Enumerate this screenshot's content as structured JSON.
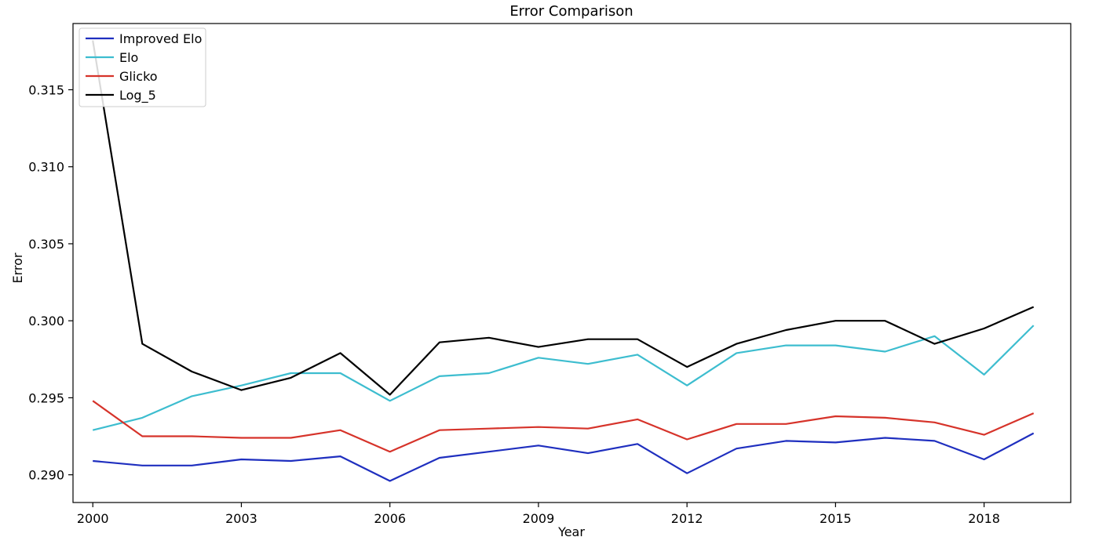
{
  "chart_data": {
    "type": "line",
    "title": "Error Comparison",
    "xlabel": "Year",
    "ylabel": "Error",
    "x": [
      2000,
      2001,
      2002,
      2003,
      2004,
      2005,
      2006,
      2007,
      2008,
      2009,
      2010,
      2011,
      2012,
      2013,
      2014,
      2015,
      2016,
      2017,
      2018,
      2019
    ],
    "xlim": [
      1999.6,
      2019.75
    ],
    "ylim": [
      0.2882,
      0.3193
    ],
    "x_ticks": [
      2000,
      2003,
      2006,
      2009,
      2012,
      2015,
      2018
    ],
    "y_ticks": [
      0.29,
      0.295,
      0.3,
      0.305,
      0.31,
      0.315
    ],
    "y_tick_labels": [
      "0.290",
      "0.295",
      "0.300",
      "0.305",
      "0.310",
      "0.315"
    ],
    "grid": false,
    "legend_position": "top-left",
    "series": [
      {
        "name": "Improved Elo",
        "color": "#1f2fbf",
        "values": [
          0.2909,
          0.2906,
          0.2906,
          0.291,
          0.2909,
          0.2912,
          0.2896,
          0.2911,
          0.2915,
          0.2919,
          0.2914,
          0.292,
          0.2901,
          0.2917,
          0.2922,
          0.2921,
          0.2924,
          0.2922,
          0.291,
          0.2927
        ]
      },
      {
        "name": "Elo",
        "color": "#3dbdcf",
        "values": [
          0.2929,
          0.2937,
          0.2951,
          0.2958,
          0.2966,
          0.2966,
          0.2948,
          0.2964,
          0.2966,
          0.2976,
          0.2972,
          0.2978,
          0.2958,
          0.2979,
          0.2984,
          0.2984,
          0.298,
          0.299,
          0.2965,
          0.2997
        ]
      },
      {
        "name": "Glicko",
        "color": "#d6332a",
        "values": [
          0.2948,
          0.2925,
          0.2925,
          0.2924,
          0.2924,
          0.2929,
          0.2915,
          0.2929,
          0.293,
          0.2931,
          0.293,
          0.2936,
          0.2923,
          0.2933,
          0.2933,
          0.2938,
          0.2937,
          0.2934,
          0.2926,
          0.294
        ]
      },
      {
        "name": "Log_5",
        "color": "#000000",
        "values": [
          0.3182,
          0.2985,
          0.2967,
          0.2955,
          0.2963,
          0.2979,
          0.2952,
          0.2986,
          0.2989,
          0.2983,
          0.2988,
          0.2988,
          0.297,
          0.2985,
          0.2994,
          0.3,
          0.3,
          0.2985,
          0.2995,
          0.3009
        ]
      }
    ]
  }
}
